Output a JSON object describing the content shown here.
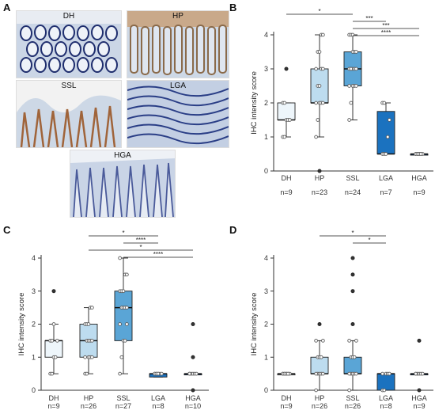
{
  "panels": {
    "A": {
      "letter": "A",
      "images": [
        {
          "label": "DH",
          "stain": "round-crypts"
        },
        {
          "label": "HP",
          "stain": "tall-crypts-brown"
        },
        {
          "label": "SSL",
          "stain": "serrated-brown"
        },
        {
          "label": "LGA",
          "stain": "tubular-blue"
        },
        {
          "label": "HGA",
          "stain": "villous-blue"
        }
      ]
    },
    "B": {
      "letter": "B"
    },
    "C": {
      "letter": "C"
    },
    "D": {
      "letter": "D"
    }
  },
  "colors": {
    "DH": "#eef6fb",
    "HP": "#bddcef",
    "SSL": "#5aa5d6",
    "LGA": "#1b72bf",
    "HGA": "#0b4d96",
    "points": "#5b5b5b",
    "axis": "#333333",
    "sig_line": "#555555"
  },
  "chart_data": [
    {
      "panel": "B",
      "type": "box",
      "ylabel": "IHC intensity score",
      "ylim": [
        0,
        4
      ],
      "yticks": [
        0,
        1,
        2,
        3,
        4
      ],
      "categories": [
        "DH",
        "HP",
        "SSL",
        "LGA",
        "HGA"
      ],
      "n_labels": [
        "n=9",
        "n=23",
        "n=24",
        "n=7",
        "n=9"
      ],
      "boxes": [
        {
          "q1": 1.5,
          "median": 1.5,
          "q3": 2.0,
          "whisker_low": 1.0,
          "whisker_high": 2.0,
          "outliers": [
            3.0
          ],
          "points": [
            1,
            1,
            1.5,
            1.5,
            1.5,
            2,
            2
          ]
        },
        {
          "q1": 2.0,
          "median": 2.0,
          "q3": 3.0,
          "whisker_low": 1.0,
          "whisker_high": 4.0,
          "outliers": [
            0
          ],
          "points": [
            1,
            1.5,
            2,
            2,
            2,
            2,
            2.5,
            2.5,
            3,
            3,
            3,
            3.5,
            3.5,
            4,
            4
          ]
        },
        {
          "q1": 2.5,
          "median": 3.0,
          "q3": 3.5,
          "whisker_low": 1.5,
          "whisker_high": 4.0,
          "outliers": [],
          "points": [
            1.5,
            2,
            2.5,
            2.5,
            2.5,
            2.5,
            3,
            3,
            3,
            3,
            3,
            3,
            3.5,
            3.5,
            3.5,
            4,
            4,
            4
          ]
        },
        {
          "q1": 0.5,
          "median": 0.5,
          "q3": 1.75,
          "whisker_low": 0.5,
          "whisker_high": 2.0,
          "outliers": [],
          "points": [
            0.5,
            0.5,
            0.5,
            1,
            1.5,
            2,
            2
          ]
        },
        {
          "q1": 0.5,
          "median": 0.5,
          "q3": 0.5,
          "whisker_low": 0.5,
          "whisker_high": 0.5,
          "outliers": [],
          "points": [
            0.5,
            0.5,
            0.5,
            0.5,
            0.5,
            0.5,
            0.5,
            0.5,
            0.5
          ]
        }
      ],
      "significance": [
        {
          "from": 0,
          "to": 2,
          "label": "*"
        },
        {
          "from": 2,
          "to": 3,
          "label": "***"
        },
        {
          "from": 2,
          "to": 4,
          "label": "***"
        },
        {
          "from": 2,
          "to": 4,
          "label": "****"
        }
      ]
    },
    {
      "panel": "C",
      "type": "box",
      "ylabel": "IHC intensity score",
      "ylim": [
        0,
        4
      ],
      "yticks": [
        0,
        1,
        2,
        3,
        4
      ],
      "categories": [
        "DH",
        "HP",
        "SSL",
        "LGA",
        "HGA"
      ],
      "n_labels": [
        "n=9",
        "n=26",
        "n=27",
        "n=8",
        "n=10"
      ],
      "boxes": [
        {
          "q1": 1.0,
          "median": 1.5,
          "q3": 1.5,
          "whisker_low": 0.5,
          "whisker_high": 2.0,
          "outliers": [
            3.0
          ],
          "points": [
            0.5,
            0.5,
            1,
            1,
            1.5,
            1.5,
            1.5,
            2
          ]
        },
        {
          "q1": 1.0,
          "median": 1.5,
          "q3": 2.0,
          "whisker_low": 0.5,
          "whisker_high": 2.5,
          "outliers": [],
          "points": [
            0.5,
            0.5,
            1,
            1,
            1,
            1,
            1.5,
            1.5,
            1.5,
            1.5,
            2,
            2,
            2,
            2.5,
            2.5
          ]
        },
        {
          "q1": 1.5,
          "median": 2.5,
          "q3": 3.0,
          "whisker_low": 0.5,
          "whisker_high": 4.0,
          "outliers": [],
          "points": [
            0.5,
            1,
            1.5,
            1.5,
            2,
            2,
            2.5,
            2.5,
            2.5,
            2.5,
            3,
            3,
            3,
            3.5,
            3.5,
            4
          ]
        },
        {
          "q1": 0.4,
          "median": 0.5,
          "q3": 0.5,
          "whisker_low": 0.4,
          "whisker_high": 0.5,
          "outliers": [],
          "points": [
            0.5,
            0.5,
            0.5,
            0.5,
            0.5,
            0.5,
            0.5,
            0.5
          ]
        },
        {
          "q1": 0.5,
          "median": 0.5,
          "q3": 0.5,
          "whisker_low": 0.5,
          "whisker_high": 0.5,
          "outliers": [
            0,
            1.0,
            2.0
          ],
          "points": [
            0.5,
            0.5,
            0.5,
            0.5,
            0.5,
            0.5
          ]
        }
      ],
      "significance": [
        {
          "from": 1,
          "to": 3,
          "label": "*"
        },
        {
          "from": 2,
          "to": 3,
          "label": "****"
        },
        {
          "from": 1,
          "to": 4,
          "label": "*"
        },
        {
          "from": 2,
          "to": 4,
          "label": "****"
        }
      ]
    },
    {
      "panel": "D",
      "type": "box",
      "ylabel": "IHC intensity score",
      "ylim": [
        0,
        4
      ],
      "yticks": [
        0,
        1,
        2,
        3,
        4
      ],
      "categories": [
        "DH",
        "HP",
        "SSL",
        "LGA",
        "HGA"
      ],
      "n_labels": [
        "n=9",
        "n=26",
        "n=26",
        "n=8",
        "n=9"
      ],
      "boxes": [
        {
          "q1": 0.5,
          "median": 0.5,
          "q3": 0.5,
          "whisker_low": 0.5,
          "whisker_high": 0.5,
          "outliers": [],
          "points": [
            0.5,
            0.5,
            0.5,
            0.5,
            0.5,
            0.5,
            0.5,
            0.5,
            0.5
          ]
        },
        {
          "q1": 0.5,
          "median": 0.5,
          "q3": 1.0,
          "whisker_low": 0,
          "whisker_high": 1.5,
          "outliers": [
            2.0
          ],
          "points": [
            0,
            0.5,
            0.5,
            0.5,
            0.5,
            0.5,
            1,
            1,
            1,
            1.5,
            1.5
          ]
        },
        {
          "q1": 0.5,
          "median": 0.5,
          "q3": 1.0,
          "whisker_low": 0,
          "whisker_high": 1.5,
          "outliers": [
            2.0,
            3.0,
            3.5,
            4.0
          ],
          "points": [
            0,
            0.5,
            0.5,
            0.5,
            0.5,
            0.5,
            1,
            1,
            1,
            1.5,
            1.5
          ]
        },
        {
          "q1": 0,
          "median": 0.5,
          "q3": 0.5,
          "whisker_low": 0,
          "whisker_high": 0.5,
          "outliers": [],
          "points": [
            0,
            0,
            0.5,
            0.5,
            0.5,
            0.5
          ]
        },
        {
          "q1": 0.5,
          "median": 0.5,
          "q3": 0.5,
          "whisker_low": 0.5,
          "whisker_high": 0.5,
          "outliers": [
            0,
            1.5
          ],
          "points": [
            0.5,
            0.5,
            0.5,
            0.5,
            0.5,
            0.5
          ]
        }
      ],
      "significance": [
        {
          "from": 1,
          "to": 3,
          "label": "*"
        },
        {
          "from": 2,
          "to": 3,
          "label": "*"
        }
      ]
    }
  ]
}
